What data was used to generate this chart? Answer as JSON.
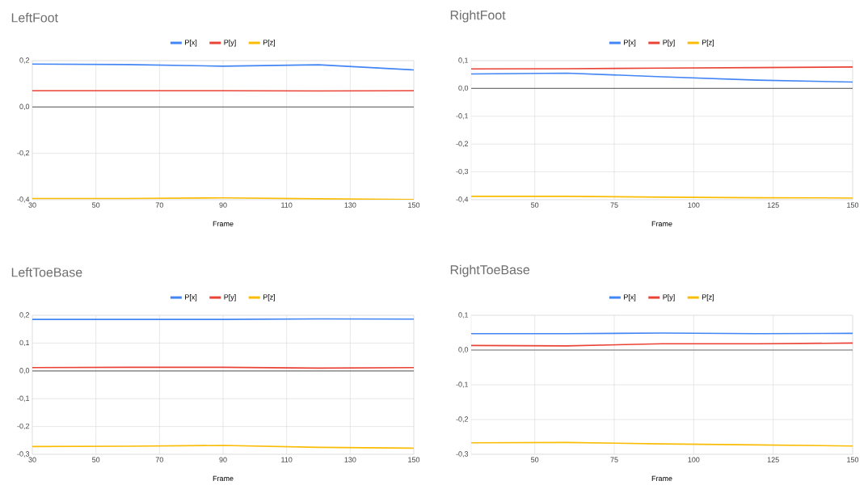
{
  "chart_data": [
    {
      "type": "line",
      "title": "LeftFoot",
      "xlabel": "Frame",
      "x": [
        30,
        60,
        90,
        120,
        150
      ],
      "xlim": [
        30,
        150
      ],
      "xticks": [
        30,
        50,
        70,
        90,
        110,
        130,
        150
      ],
      "ylim": [
        -0.4,
        0.2
      ],
      "yticks": [
        {
          "value": -0.4,
          "label": "-0,4"
        },
        {
          "value": -0.2,
          "label": "-0,2"
        },
        {
          "value": 0,
          "label": "0,0"
        },
        {
          "value": 0.2,
          "label": "0,2"
        }
      ],
      "grid": true,
      "legend": "top",
      "ref_lines": [
        {
          "axis": "y",
          "value": 0,
          "color": "#757575"
        }
      ],
      "series": [
        {
          "name": "P[x]",
          "color": "#4285f4",
          "values": [
            0.185,
            0.183,
            0.176,
            0.182,
            0.16
          ]
        },
        {
          "name": "P[y]",
          "color": "#ea4335",
          "values": [
            0.07,
            0.07,
            0.07,
            0.069,
            0.07
          ]
        },
        {
          "name": "P[z]",
          "color": "#fbbc04",
          "values": [
            -0.395,
            -0.395,
            -0.392,
            -0.396,
            -0.399
          ]
        }
      ]
    },
    {
      "type": "line",
      "title": "RightFoot",
      "xlabel": "Frame",
      "x": [
        30,
        60,
        90,
        120,
        150
      ],
      "xlim": [
        30,
        150
      ],
      "xticks": [
        50,
        75,
        100,
        125,
        150
      ],
      "ylim": [
        -0.4,
        0.1
      ],
      "yticks": [
        {
          "value": -0.4,
          "label": "-0,4"
        },
        {
          "value": -0.3,
          "label": "-0,3"
        },
        {
          "value": -0.2,
          "label": "-0,2"
        },
        {
          "value": -0.1,
          "label": "-0,1"
        },
        {
          "value": 0,
          "label": "0,0"
        },
        {
          "value": 0.1,
          "label": "0,1"
        }
      ],
      "grid": true,
      "legend": "top",
      "ref_lines": [
        {
          "axis": "y",
          "value": 0,
          "color": "#757575"
        }
      ],
      "series": [
        {
          "name": "P[x]",
          "color": "#4285f4",
          "values": [
            0.052,
            0.055,
            0.042,
            0.03,
            0.023
          ]
        },
        {
          "name": "P[y]",
          "color": "#ea4335",
          "values": [
            0.07,
            0.071,
            0.073,
            0.075,
            0.077
          ]
        },
        {
          "name": "P[z]",
          "color": "#fbbc04",
          "values": [
            -0.388,
            -0.388,
            -0.391,
            -0.393,
            -0.394
          ]
        }
      ]
    },
    {
      "type": "line",
      "title": "LeftToeBase",
      "xlabel": "Frame",
      "x": [
        30,
        60,
        90,
        120,
        150
      ],
      "xlim": [
        30,
        150
      ],
      "xticks": [
        30,
        50,
        70,
        90,
        110,
        130,
        150
      ],
      "ylim": [
        -0.3,
        0.2
      ],
      "yticks": [
        {
          "value": -0.3,
          "label": "-0,3"
        },
        {
          "value": -0.2,
          "label": "-0,2"
        },
        {
          "value": -0.1,
          "label": "-0,1"
        },
        {
          "value": 0,
          "label": "0,0"
        },
        {
          "value": 0.1,
          "label": "0,1"
        },
        {
          "value": 0.2,
          "label": "0,2"
        }
      ],
      "grid": true,
      "legend": "top",
      "ref_lines": [
        {
          "axis": "y",
          "value": 0,
          "color": "#757575"
        }
      ],
      "series": [
        {
          "name": "P[x]",
          "color": "#4285f4",
          "values": [
            0.185,
            0.185,
            0.185,
            0.187,
            0.186
          ]
        },
        {
          "name": "P[y]",
          "color": "#ea4335",
          "values": [
            0.012,
            0.013,
            0.013,
            0.01,
            0.012
          ]
        },
        {
          "name": "P[z]",
          "color": "#fbbc04",
          "values": [
            -0.272,
            -0.271,
            -0.268,
            -0.275,
            -0.278
          ]
        }
      ]
    },
    {
      "type": "line",
      "title": "RightToeBase",
      "xlabel": "Frame",
      "x": [
        30,
        60,
        90,
        120,
        150
      ],
      "xlim": [
        30,
        150
      ],
      "xticks": [
        50,
        75,
        100,
        125,
        150
      ],
      "ylim": [
        -0.3,
        0.1
      ],
      "yticks": [
        {
          "value": -0.3,
          "label": "-0,3"
        },
        {
          "value": -0.2,
          "label": "-0,2"
        },
        {
          "value": -0.1,
          "label": "-0,1"
        },
        {
          "value": 0,
          "label": "0,0"
        },
        {
          "value": 0.1,
          "label": "0,1"
        }
      ],
      "grid": true,
      "legend": "top",
      "ref_lines": [
        {
          "axis": "y",
          "value": 0,
          "color": "#757575"
        }
      ],
      "series": [
        {
          "name": "P[x]",
          "color": "#4285f4",
          "values": [
            0.047,
            0.047,
            0.049,
            0.047,
            0.048
          ]
        },
        {
          "name": "P[y]",
          "color": "#ea4335",
          "values": [
            0.013,
            0.012,
            0.018,
            0.018,
            0.02
          ]
        },
        {
          "name": "P[z]",
          "color": "#fbbc04",
          "values": [
            -0.267,
            -0.266,
            -0.27,
            -0.273,
            -0.276
          ]
        }
      ]
    }
  ]
}
